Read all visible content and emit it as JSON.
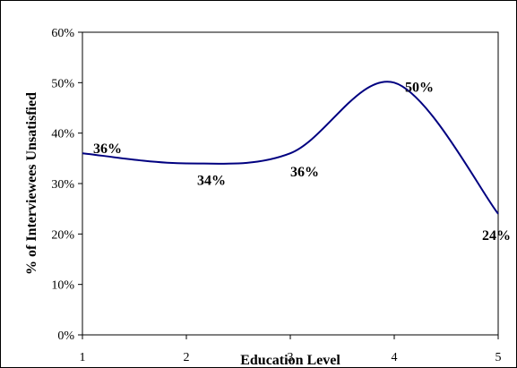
{
  "chart_data": {
    "type": "line",
    "title": "",
    "xlabel": "Education Level",
    "ylabel": "% of Interviewees Unsatisfied",
    "x": [
      1,
      2,
      3,
      4,
      5
    ],
    "series": [
      {
        "values": [
          36,
          34,
          36,
          50,
          24
        ]
      }
    ],
    "xlim": [
      1,
      5
    ],
    "ylim": [
      0,
      60
    ],
    "x_ticks": [
      "1",
      "2",
      "3",
      "4",
      "5"
    ],
    "y_ticks": [
      "0%",
      "10%",
      "20%",
      "30%",
      "40%",
      "50%",
      "60%"
    ],
    "data_labels": [
      "36%",
      "34%",
      "36%",
      "50%",
      "24%"
    ],
    "line_style": "smoothed",
    "grid": false,
    "legend": "none",
    "colors": {
      "line": "#000080",
      "axis": "#000000",
      "background": "#ffffff"
    }
  }
}
